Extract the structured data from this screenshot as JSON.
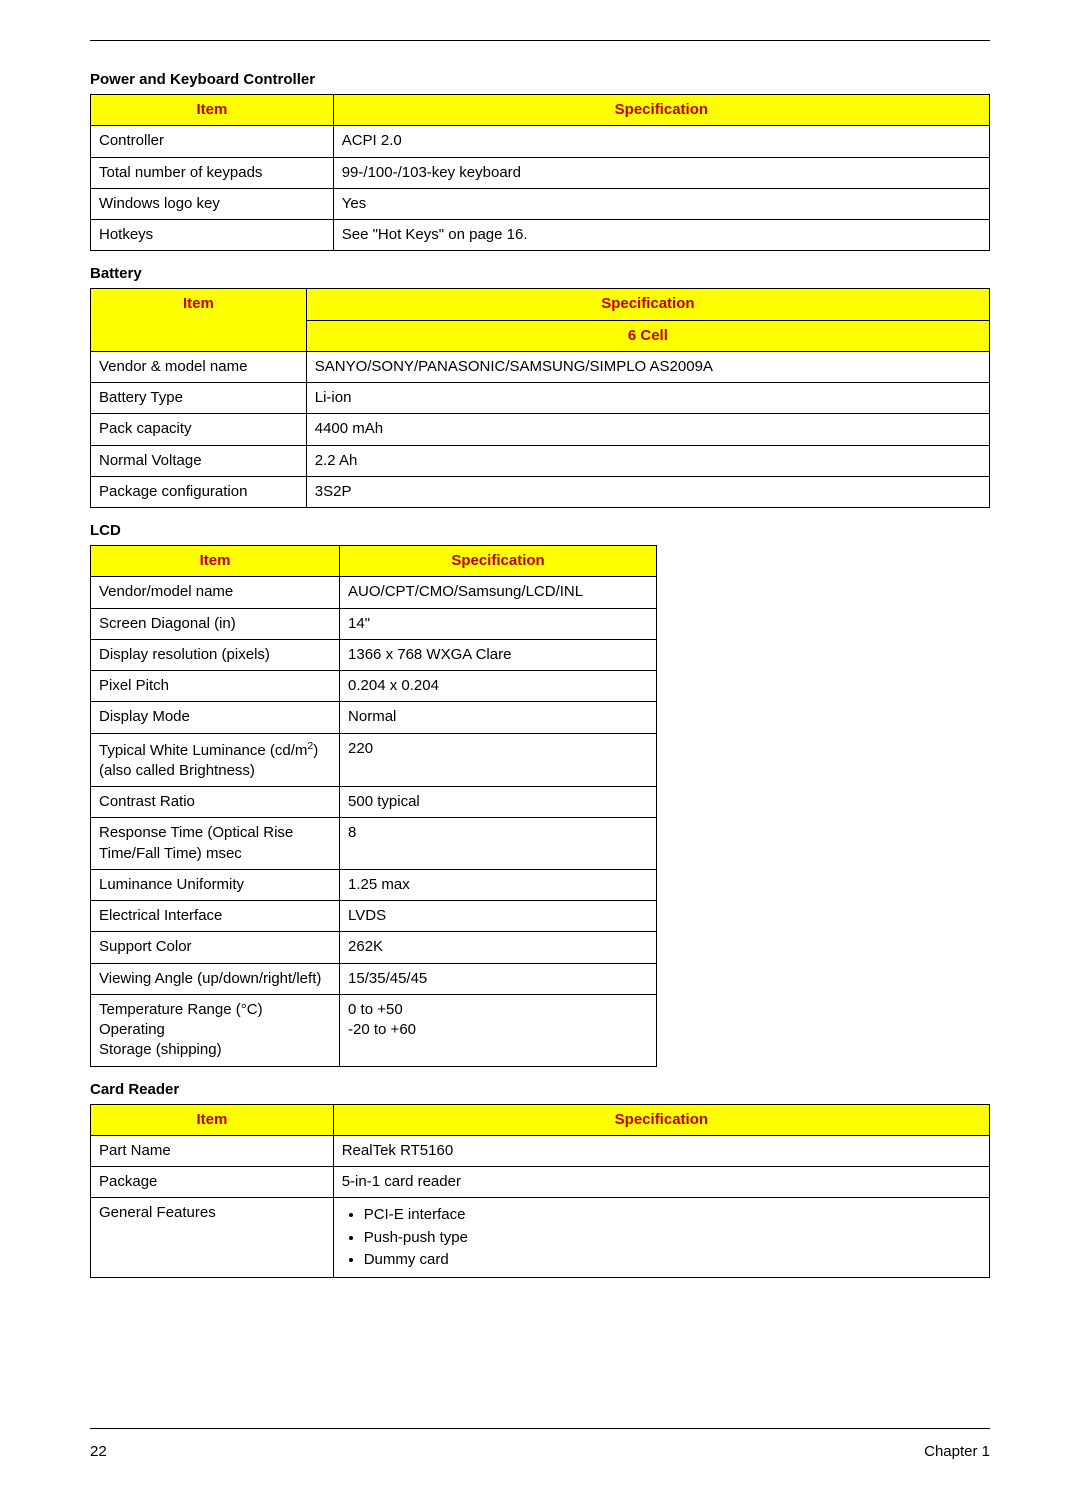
{
  "page": {
    "number": "22",
    "chapter": "Chapter 1"
  },
  "colors": {
    "header_bg": "#ffff00",
    "header_text": "#c00000",
    "border": "#000000",
    "body_text": "#000000",
    "background": "#ffffff"
  },
  "sections": {
    "pkc": {
      "title": "Power and Keyboard Controller",
      "col_item": "Item",
      "col_spec": "Specification",
      "col_widths": [
        "27%",
        "73%"
      ],
      "rows": [
        {
          "item": "Controller",
          "spec": "ACPI 2.0"
        },
        {
          "item": "Total number of keypads",
          "spec": "99-/100-/103-key keyboard"
        },
        {
          "item": "Windows logo key",
          "spec": "Yes"
        },
        {
          "item": "Hotkeys",
          "spec": "See \"Hot Keys\" on page 16."
        }
      ]
    },
    "battery": {
      "title": "Battery",
      "col_item": "Item",
      "col_spec": "Specification",
      "subhead": "6 Cell",
      "col_widths": [
        "24%",
        "76%"
      ],
      "rows": [
        {
          "item": "Vendor & model name",
          "spec": "SANYO/SONY/PANASONIC/SAMSUNG/SIMPLO AS2009A"
        },
        {
          "item": "Battery Type",
          "spec": "Li-ion"
        },
        {
          "item": "Pack capacity",
          "spec": "4400 mAh"
        },
        {
          "item": "Normal Voltage",
          "spec": "2.2 Ah"
        },
        {
          "item": "Package configuration",
          "spec": "3S2P"
        }
      ]
    },
    "lcd": {
      "title": "LCD",
      "col_item": "Item",
      "col_spec": "Specification",
      "col_widths": [
        "44%",
        "56%"
      ],
      "rows": [
        {
          "item": "Vendor/model name",
          "spec": "AUO/CPT/CMO/Samsung/LCD/INL"
        },
        {
          "item": "Screen Diagonal (in)",
          "spec": "14\""
        },
        {
          "item": "Display resolution (pixels)",
          "spec": "1366 x 768 WXGA Clare"
        },
        {
          "item": "Pixel Pitch",
          "spec": "0.204 x 0.204"
        },
        {
          "item": "Display Mode",
          "spec": "Normal"
        },
        {
          "item_html": "Typical White Luminance (cd/m<sup>2</sup>) (also called Brightness)",
          "spec": "220"
        },
        {
          "item": "Contrast Ratio",
          "spec": "500 typical"
        },
        {
          "item": "Response Time (Optical Rise Time/Fall Time) msec",
          "spec": "8"
        },
        {
          "item": "Luminance Uniformity",
          "spec": "1.25 max"
        },
        {
          "item": "Electrical Interface",
          "spec": "LVDS"
        },
        {
          "item": "Support Color",
          "spec": "262K"
        },
        {
          "item": "Viewing Angle (up/down/right/left)",
          "spec": "15/35/45/45"
        },
        {
          "item_html": "Temperature Range (°C)<br>Operating<br>Storage (shipping)",
          "spec_html": "0 to +50<br>-20 to +60"
        }
      ]
    },
    "card_reader": {
      "title": "Card Reader",
      "col_item": "Item",
      "col_spec": "Specification",
      "col_widths": [
        "27%",
        "73%"
      ],
      "rows": [
        {
          "item": "Part Name",
          "spec": "RealTek RT5160"
        },
        {
          "item": "Package",
          "spec": "5-in-1 card reader"
        },
        {
          "item": "General Features",
          "spec_list": [
            "PCI-E interface",
            "Push-push type",
            "Dummy card"
          ]
        }
      ]
    }
  }
}
